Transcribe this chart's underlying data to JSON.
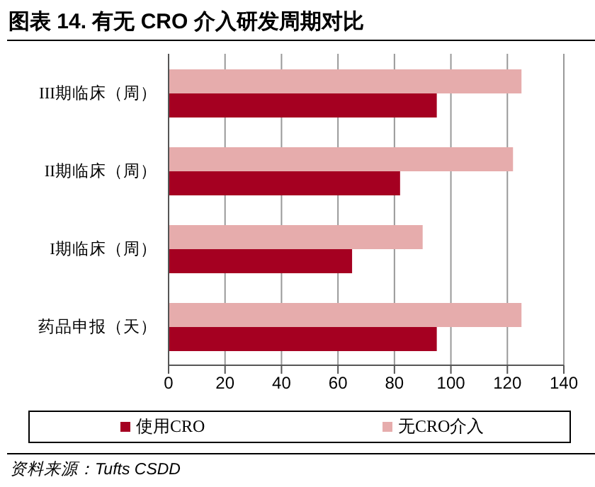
{
  "chart_data": {
    "type": "bar",
    "orientation": "horizontal",
    "title": "图表 14. 有无 CRO 介入研发周期对比",
    "categories": [
      "III期临床（周）",
      "II期临床（周）",
      "I期临床（周）",
      "药品申报（天）"
    ],
    "series": [
      {
        "name": "使用CRO",
        "color": "#a50021",
        "values": [
          95,
          82,
          65,
          95
        ]
      },
      {
        "name": "无CRO介入",
        "color": "#e6acac",
        "values": [
          125,
          122,
          90,
          125
        ]
      }
    ],
    "xlim": [
      0,
      140
    ],
    "xticks": [
      0,
      20,
      40,
      60,
      80,
      100,
      120,
      140
    ],
    "grid": "x",
    "legend": "bottom",
    "annotations": [
      "资料来源：Tufts CSDD"
    ]
  }
}
